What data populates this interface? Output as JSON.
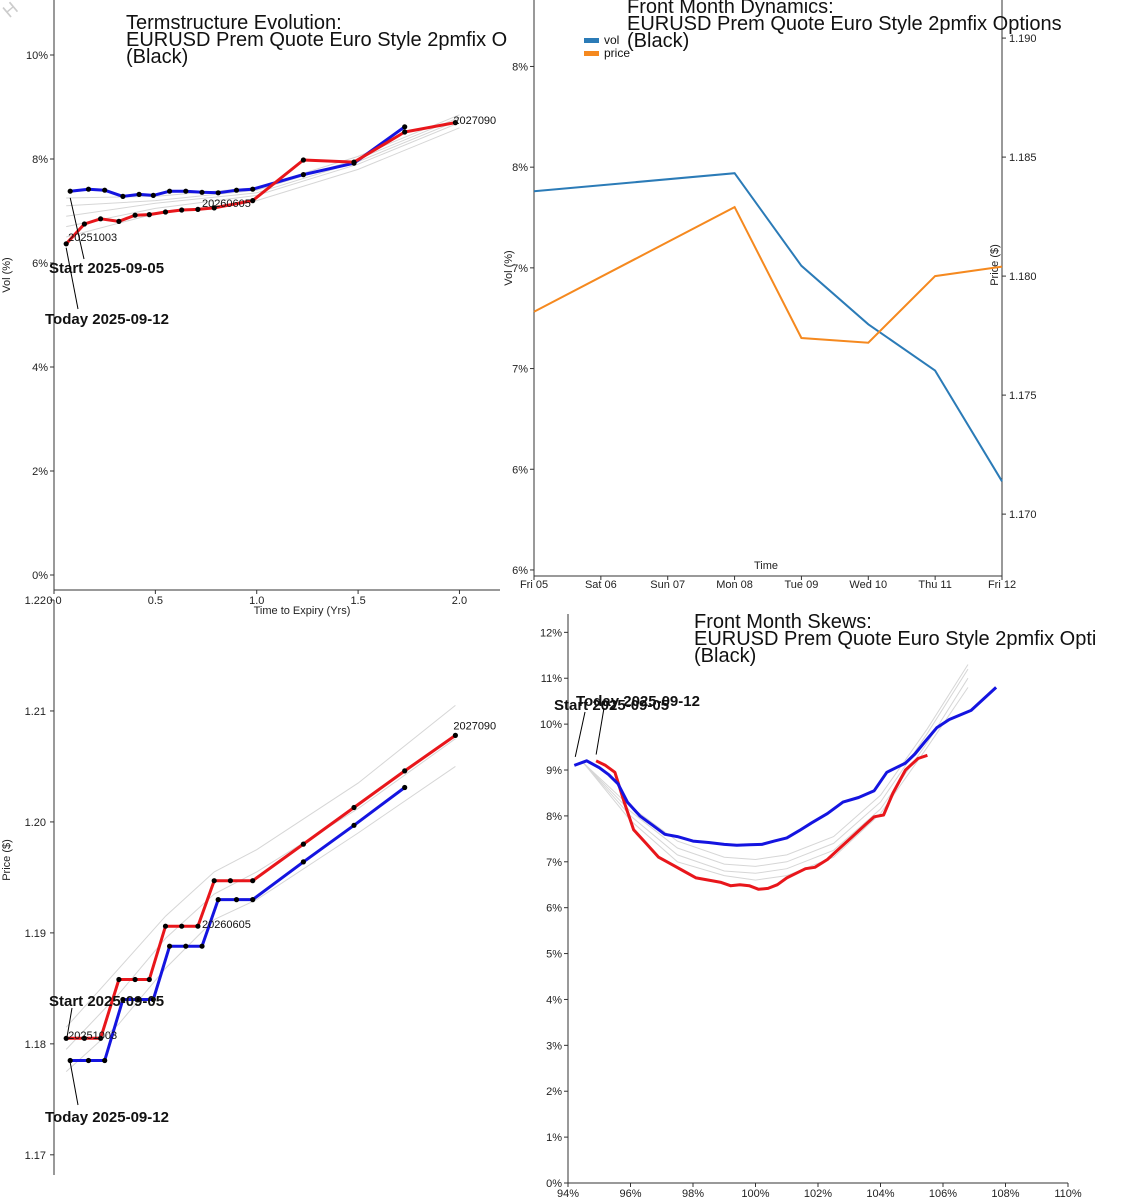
{
  "colors": {
    "red": "#e8161b",
    "blue": "#1414e0",
    "gray": "#d6d6d6",
    "vol": "#2b7bb7",
    "price": "#f5891f",
    "axis": "#333333"
  },
  "watermark": "H",
  "chart_data": [
    {
      "id": "termstructure",
      "type": "line",
      "title": [
        "Termstructure Evolution:",
        "EURUSD Prem Quote Euro Style 2pmfix O",
        "(Black)"
      ],
      "xlabel": "Time to Expiry (Yrs)",
      "ylabel": "Vol (%)",
      "xlim": [
        0,
        2.2
      ],
      "ylim": [
        0,
        10.5
      ],
      "xticks": [
        0.0,
        0.5,
        1.0,
        1.5,
        2.0
      ],
      "xtick_labels": [
        "0.0",
        "0.5",
        "1.0",
        "1.5",
        "2.0"
      ],
      "yticks": [
        0,
        2,
        4,
        6,
        8,
        10
      ],
      "ytick_labels": [
        "0%",
        "2%",
        "4%",
        "6%",
        "8%",
        "10%"
      ],
      "labels": [
        {
          "text": "20251003",
          "x": 0.06,
          "y": 6.5
        },
        {
          "text": "20260605",
          "x": 0.72,
          "y": 7.15
        },
        {
          "text": "2027090",
          "x": 1.96,
          "y": 8.75
        }
      ],
      "annotations": [
        {
          "text": "Start 2025-09-05",
          "x": 0.08,
          "y": 7.33
        },
        {
          "text": "Today 2025-09-12",
          "x": 0.06,
          "y": 6.37
        }
      ],
      "series": [
        {
          "name": "Start 2025-09-05",
          "color": "blue",
          "markers": true,
          "x": [
            0.08,
            0.17,
            0.25,
            0.34,
            0.42,
            0.49,
            0.57,
            0.65,
            0.73,
            0.81,
            0.9,
            0.98,
            1.23,
            1.48,
            1.73
          ],
          "y": [
            7.38,
            7.42,
            7.4,
            7.28,
            7.32,
            7.3,
            7.38,
            7.38,
            7.36,
            7.35,
            7.4,
            7.42,
            7.7,
            7.92,
            8.62
          ]
        },
        {
          "name": "Today 2025-09-12",
          "color": "red",
          "markers": true,
          "x": [
            0.06,
            0.15,
            0.23,
            0.32,
            0.4,
            0.47,
            0.55,
            0.63,
            0.71,
            0.79,
            0.98,
            1.23,
            1.48,
            1.73,
            1.98
          ],
          "y": [
            6.37,
            6.75,
            6.85,
            6.8,
            6.92,
            6.93,
            6.98,
            7.02,
            7.03,
            7.06,
            7.2,
            7.98,
            7.94,
            8.52,
            8.7
          ]
        }
      ],
      "history": [
        {
          "x": [
            0.06,
            0.5,
            1.0,
            1.5,
            2.0
          ],
          "y": [
            6.5,
            6.95,
            7.2,
            7.8,
            8.6
          ]
        },
        {
          "x": [
            0.06,
            0.5,
            1.0,
            1.5,
            2.0
          ],
          "y": [
            6.7,
            7.05,
            7.3,
            7.9,
            8.7
          ]
        },
        {
          "x": [
            0.06,
            0.5,
            1.0,
            1.5,
            2.0
          ],
          "y": [
            6.9,
            7.15,
            7.35,
            7.95,
            8.75
          ]
        },
        {
          "x": [
            0.06,
            0.5,
            1.0,
            1.5,
            2.0
          ],
          "y": [
            7.1,
            7.2,
            7.4,
            8.0,
            8.8
          ]
        },
        {
          "x": [
            0.06,
            0.5,
            1.0,
            1.5,
            2.0
          ],
          "y": [
            7.25,
            7.28,
            7.45,
            8.05,
            8.85
          ]
        }
      ]
    },
    {
      "id": "dynamics",
      "type": "line",
      "title": [
        "Front Month Dynamics:",
        "EURUSD Prem Quote Euro Style 2pmfix Options",
        "(Black)"
      ],
      "xlabel": "Time",
      "ylabel": "Vol (%)",
      "y2label": "Price ($)",
      "categories": [
        "Fri 05",
        "Sat 06",
        "Sun 07",
        "Mon 08",
        "Tue 09",
        "Wed 10",
        "Thu 11",
        "Fri 12"
      ],
      "xlim": [
        0,
        7
      ],
      "yticks_left": [
        5.9,
        6.4,
        6.9,
        7.4,
        7.9,
        8.4
      ],
      "ytick_labels_left": [
        "6%",
        "6%",
        "7%",
        "7%",
        "8%",
        "8%"
      ],
      "ylim": [
        5.87,
        8.73
      ],
      "y2ticks": [
        1.17,
        1.175,
        1.18,
        1.185,
        1.19
      ],
      "y2tick_labels": [
        "1.170",
        "1.175",
        "1.180",
        "1.185",
        "1.190"
      ],
      "y2lim": [
        1.1674,
        1.1916
      ],
      "legend": [
        "vol",
        "price"
      ],
      "legend_position": "top-left",
      "series": [
        {
          "name": "vol",
          "color": "vol",
          "axis": "left",
          "x": [
            0,
            3,
            4,
            5,
            6,
            7
          ],
          "y": [
            7.78,
            7.87,
            7.41,
            7.12,
            6.89,
            6.34
          ]
        },
        {
          "name": "price",
          "color": "price",
          "axis": "right",
          "x": [
            0,
            3,
            4,
            5,
            6,
            7
          ],
          "y": [
            1.1785,
            1.1829,
            1.1774,
            1.1772,
            1.18,
            1.1804
          ]
        }
      ]
    },
    {
      "id": "price-termstructure",
      "type": "line",
      "title": [],
      "xlabel": "",
      "ylabel": "Price ($)",
      "xlim": [
        0,
        2.2
      ],
      "ylim": [
        1.168,
        1.22
      ],
      "yticks": [
        1.17,
        1.18,
        1.19,
        1.2,
        1.21,
        1.22
      ],
      "ytick_labels": [
        "1.17",
        "1.18",
        "1.19",
        "1.20",
        "1.21",
        "1.22"
      ],
      "labels": [
        {
          "text": "20251003",
          "x": 0.06,
          "y": 1.1808
        },
        {
          "text": "20260605",
          "x": 0.72,
          "y": 1.1908
        },
        {
          "text": "2027090",
          "x": 1.96,
          "y": 1.2087
        }
      ],
      "annotations": [
        {
          "text": "Start 2025-09-05",
          "x": 0.06,
          "y": 1.1805
        },
        {
          "text": "Today 2025-09-12",
          "x": 0.08,
          "y": 1.1785
        }
      ],
      "series": [
        {
          "name": "Today 2025-09-12",
          "color": "red",
          "markers": true,
          "x": [
            0.06,
            0.15,
            0.23,
            0.32,
            0.4,
            0.47,
            0.55,
            0.63,
            0.71,
            0.79,
            0.87,
            0.98,
            1.23,
            1.48,
            1.73,
            1.98
          ],
          "y": [
            1.1805,
            1.1805,
            1.1805,
            1.1858,
            1.1858,
            1.1858,
            1.1906,
            1.1906,
            1.1906,
            1.1947,
            1.1947,
            1.1947,
            1.198,
            1.2013,
            1.2046,
            1.2078
          ]
        },
        {
          "name": "Start 2025-09-05",
          "color": "blue",
          "markers": true,
          "x": [
            0.08,
            0.17,
            0.25,
            0.34,
            0.42,
            0.49,
            0.57,
            0.65,
            0.73,
            0.81,
            0.9,
            0.98,
            1.23,
            1.48,
            1.73
          ],
          "y": [
            1.1785,
            1.1785,
            1.1785,
            1.184,
            1.184,
            1.184,
            1.1888,
            1.1888,
            1.1888,
            1.193,
            1.193,
            1.193,
            1.1964,
            1.1997,
            1.2031
          ]
        }
      ],
      "history": [
        {
          "x": [
            0.06,
            0.32,
            0.55,
            0.79,
            1.0,
            1.5,
            1.98
          ],
          "y": [
            1.1775,
            1.1818,
            1.1868,
            1.1912,
            1.193,
            1.199,
            1.205
          ]
        },
        {
          "x": [
            0.06,
            0.32,
            0.55,
            0.79,
            1.0,
            1.5,
            1.98
          ],
          "y": [
            1.1815,
            1.1868,
            1.1915,
            1.1955,
            1.1975,
            1.2035,
            1.2105
          ]
        },
        {
          "x": [
            0.06,
            0.32,
            0.55,
            0.79,
            1.0,
            1.5,
            1.98
          ],
          "y": [
            1.1795,
            1.1845,
            1.1895,
            1.1935,
            1.1955,
            1.2012,
            1.2075
          ]
        }
      ]
    },
    {
      "id": "skews",
      "type": "line",
      "title": [
        "Front Month Skews:",
        "EURUSD Prem Quote Euro Style 2pmfix Opti",
        "(Black)"
      ],
      "xlabel": "",
      "ylabel": "",
      "xlim": [
        94,
        110
      ],
      "ylim": [
        0,
        12.4
      ],
      "xticks": [
        94,
        96,
        98,
        100,
        102,
        104,
        106,
        108,
        110
      ],
      "xtick_labels": [
        "94%",
        "96%",
        "98%",
        "100%",
        "102%",
        "104%",
        "106%",
        "108%",
        "110%"
      ],
      "yticks": [
        0,
        1,
        2,
        3,
        4,
        5,
        6,
        7,
        8,
        9,
        10,
        11,
        12
      ],
      "ytick_labels": [
        "0%",
        "1%",
        "2%",
        "3%",
        "4%",
        "5%",
        "6%",
        "7%",
        "8%",
        "9%",
        "10%",
        "11%",
        "12%"
      ],
      "annotations": [
        {
          "text": "Start 2025-09-05",
          "x": 94.2,
          "y": 9.2
        },
        {
          "text": "Today 2025-09-12",
          "x": 94.9,
          "y": 9.25
        }
      ],
      "series": [
        {
          "name": "Start 2025-09-05",
          "color": "blue",
          "x": [
            94.2,
            94.6,
            95.0,
            95.3,
            95.6,
            95.9,
            96.3,
            96.7,
            97.1,
            97.5,
            98.0,
            98.5,
            99.0,
            99.4,
            99.8,
            100.2,
            100.6,
            101.0,
            101.4,
            101.8,
            102.3,
            102.8,
            103.3,
            103.8,
            104.2,
            104.5,
            104.8,
            105.1,
            105.4,
            105.8,
            106.2,
            106.9,
            107.7
          ],
          "y": [
            9.1,
            9.2,
            9.05,
            8.9,
            8.7,
            8.3,
            8.0,
            7.8,
            7.6,
            7.55,
            7.45,
            7.42,
            7.38,
            7.36,
            7.37,
            7.38,
            7.45,
            7.52,
            7.68,
            7.85,
            8.05,
            8.3,
            8.4,
            8.55,
            8.95,
            9.05,
            9.15,
            9.35,
            9.6,
            9.92,
            10.1,
            10.3,
            10.8
          ]
        },
        {
          "name": "Today 2025-09-12",
          "color": "red",
          "x": [
            94.9,
            95.2,
            95.5,
            95.8,
            96.1,
            96.5,
            96.9,
            97.3,
            97.7,
            98.1,
            98.5,
            98.9,
            99.2,
            99.5,
            99.8,
            100.1,
            100.4,
            100.7,
            101.0,
            101.3,
            101.6,
            101.9,
            102.3,
            102.7,
            103.1,
            103.5,
            103.8,
            104.1,
            104.4,
            104.8,
            105.2,
            105.5
          ],
          "y": [
            9.2,
            9.1,
            8.95,
            8.3,
            7.7,
            7.4,
            7.1,
            6.95,
            6.8,
            6.65,
            6.6,
            6.55,
            6.48,
            6.5,
            6.48,
            6.4,
            6.42,
            6.5,
            6.65,
            6.75,
            6.85,
            6.88,
            7.05,
            7.3,
            7.55,
            7.8,
            7.98,
            8.02,
            8.5,
            9.0,
            9.25,
            9.32
          ]
        }
      ],
      "history": [
        {
          "x": [
            94.5,
            96,
            97.5,
            99,
            100,
            101,
            102.5,
            104,
            105.5,
            106.8
          ],
          "y": [
            9.15,
            8.1,
            7.3,
            6.95,
            6.9,
            7.0,
            7.4,
            8.3,
            9.8,
            11.2
          ]
        },
        {
          "x": [
            94.5,
            96,
            97.5,
            99,
            100,
            101,
            102.5,
            104,
            105.5,
            106.8
          ],
          "y": [
            9.15,
            8.0,
            7.15,
            6.8,
            6.75,
            6.85,
            7.25,
            8.15,
            9.6,
            11.0
          ]
        },
        {
          "x": [
            94.5,
            96,
            97.5,
            99,
            100,
            101,
            102.5,
            104,
            105.5,
            106.8
          ],
          "y": [
            9.15,
            8.2,
            7.45,
            7.1,
            7.05,
            7.15,
            7.55,
            8.45,
            9.9,
            11.3
          ]
        },
        {
          "x": [
            94.5,
            96,
            97.5,
            99,
            100,
            101,
            102.5,
            104,
            105.5,
            106.8
          ],
          "y": [
            9.15,
            7.9,
            7.0,
            6.7,
            6.6,
            6.7,
            7.1,
            8.05,
            9.5,
            10.8
          ]
        }
      ]
    }
  ]
}
